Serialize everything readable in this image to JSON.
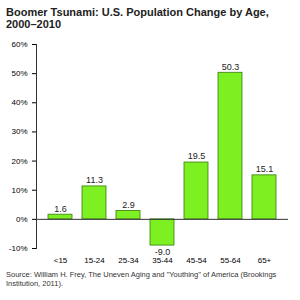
{
  "chart_data": {
    "type": "bar",
    "title": "Boomer Tsunami: U.S. Population Change by Age, 2000–2010",
    "source": "Source: William H. Frey, The Uneven Aging and \"Youthing\" of America (Brookings Institution, 2011).",
    "categories": [
      "<15",
      "15-24",
      "25-34",
      "35-44",
      "45-54",
      "55-64",
      "65+"
    ],
    "values": [
      1.6,
      11.3,
      2.9,
      -9.0,
      19.5,
      50.3,
      15.1
    ],
    "value_labels": [
      "1.6",
      "11.3",
      "2.9",
      "-9.0",
      "19.5",
      "50.3",
      "15.1"
    ],
    "color": "#7cf020",
    "ylim": [
      -10,
      60
    ],
    "yticks": [
      {
        "value": -10,
        "label": "-10%"
      },
      {
        "value": 0,
        "label": "0%"
      },
      {
        "value": 10,
        "label": "10%"
      },
      {
        "value": 20,
        "label": "20%"
      },
      {
        "value": 30,
        "label": "30%"
      },
      {
        "value": 40,
        "label": "40%"
      },
      {
        "value": 50,
        "label": "50%"
      },
      {
        "value": 60,
        "label": "60%"
      }
    ],
    "grid": false,
    "data_labels": true
  }
}
